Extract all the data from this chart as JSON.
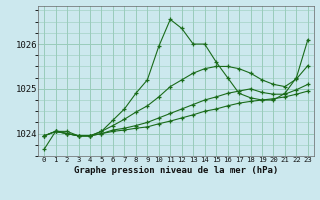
{
  "title": "Graphe pression niveau de la mer (hPa)",
  "background_color": "#cce8ee",
  "grid_color": "#99ccbb",
  "line_color": "#1a6b1a",
  "x_labels": [
    "0",
    "1",
    "2",
    "3",
    "4",
    "5",
    "6",
    "7",
    "8",
    "9",
    "10",
    "11",
    "12",
    "13",
    "14",
    "15",
    "16",
    "17",
    "18",
    "19",
    "20",
    "21",
    "22",
    "23"
  ],
  "ylim": [
    1023.55,
    1026.85
  ],
  "yticks": [
    1024,
    1025,
    1026
  ],
  "series": [
    [
      1023.65,
      1024.05,
      1024.05,
      1023.95,
      1023.95,
      1024.05,
      1024.3,
      1024.55,
      1024.9,
      1025.2,
      1025.95,
      1026.55,
      1026.35,
      1026.0,
      1026.0,
      1025.6,
      1025.25,
      1024.9,
      1024.8,
      1024.75,
      1024.75,
      1024.9,
      1025.25,
      1026.1
    ],
    [
      1023.95,
      1024.05,
      1024.0,
      1023.95,
      1023.95,
      1024.0,
      1024.05,
      1024.08,
      1024.12,
      1024.15,
      1024.22,
      1024.28,
      1024.35,
      1024.42,
      1024.5,
      1024.55,
      1024.62,
      1024.68,
      1024.72,
      1024.75,
      1024.78,
      1024.82,
      1024.88,
      1024.95
    ],
    [
      1023.95,
      1024.05,
      1024.0,
      1023.95,
      1023.95,
      1024.0,
      1024.08,
      1024.12,
      1024.18,
      1024.25,
      1024.35,
      1024.45,
      1024.55,
      1024.65,
      1024.75,
      1024.82,
      1024.9,
      1024.95,
      1025.0,
      1024.92,
      1024.88,
      1024.88,
      1024.98,
      1025.1
    ],
    [
      1023.95,
      1024.05,
      1024.0,
      1023.95,
      1023.95,
      1024.05,
      1024.18,
      1024.32,
      1024.48,
      1024.62,
      1024.82,
      1025.05,
      1025.2,
      1025.35,
      1025.45,
      1025.5,
      1025.5,
      1025.45,
      1025.35,
      1025.2,
      1025.1,
      1025.05,
      1025.22,
      1025.52
    ]
  ]
}
